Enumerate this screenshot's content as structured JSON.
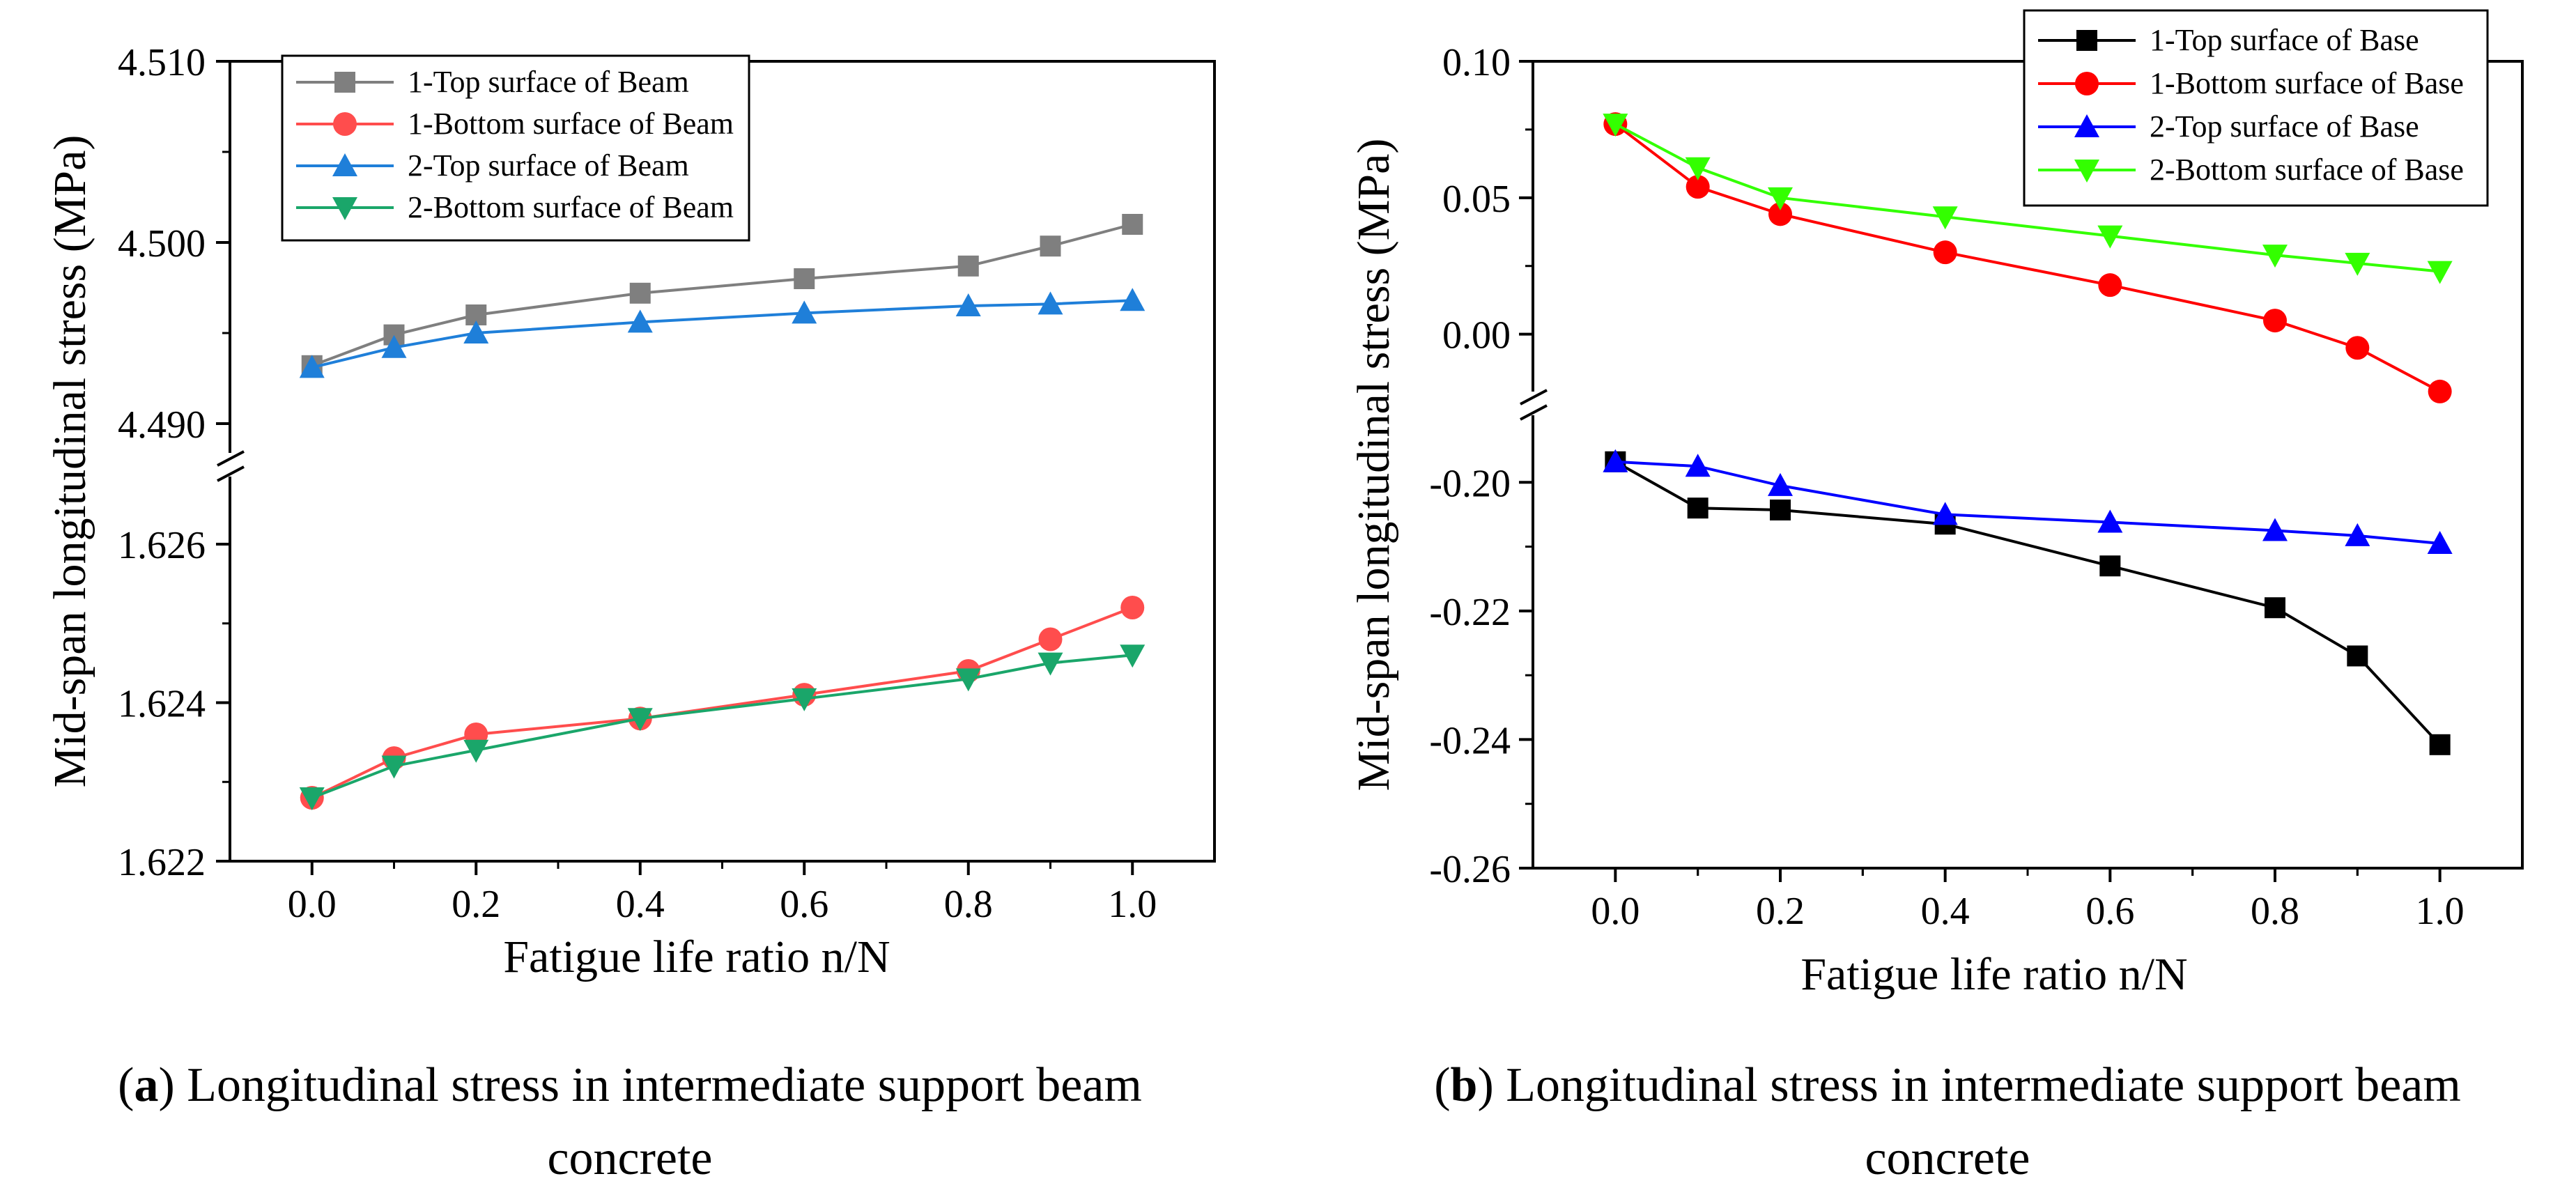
{
  "chart_data": [
    {
      "type": "line",
      "panel": "a",
      "ylabel": "Mid-span longitudinal stress (MPa)",
      "xlabel": "Fatigue life ratio n/N",
      "x_ticks": [
        "0.0",
        "0.2",
        "0.4",
        "0.6",
        "0.8",
        "1.0"
      ],
      "xlim": [
        -0.1,
        1.1
      ],
      "broken_axis": true,
      "upper_range": [
        4.488,
        4.51
      ],
      "upper_ticks": [
        "4.490",
        "4.500",
        "4.510"
      ],
      "lower_range": [
        1.622,
        1.6268
      ],
      "lower_ticks": [
        "1.622",
        "1.624",
        "1.626"
      ],
      "caption_label": "a",
      "caption_text": "Longitudinal stress in intermediate support beam",
      "caption_line2": "concrete",
      "legend_position": "top-left",
      "x": [
        0,
        0.1,
        0.2,
        0.4,
        0.6,
        0.8,
        0.9,
        1.0
      ],
      "series": [
        {
          "name": "1-Top surface of Beam",
          "segment": "upper",
          "marker": "square",
          "color": "#7f7f7f",
          "values": [
            4.4932,
            4.4949,
            4.496,
            4.4972,
            4.498,
            4.4987,
            4.4998,
            4.501
          ]
        },
        {
          "name": "1-Bottom surface of Beam",
          "segment": "lower",
          "marker": "circle",
          "color": "#ff4d4d",
          "values": [
            1.6228,
            1.6233,
            1.6236,
            1.6238,
            1.6241,
            1.6244,
            1.6248,
            1.6252
          ]
        },
        {
          "name": "2-Top surface of Beam",
          "segment": "upper",
          "marker": "triangle-up",
          "color": "#1f7fd9",
          "values": [
            4.4931,
            4.4942,
            4.495,
            4.4956,
            4.4961,
            4.4965,
            4.4966,
            4.4968
          ]
        },
        {
          "name": "2-Bottom surface of Beam",
          "segment": "lower",
          "marker": "triangle-down",
          "color": "#1aa66a",
          "values": [
            1.6228,
            1.6232,
            1.6234,
            1.6238,
            1.62405,
            1.6243,
            1.6245,
            1.6246
          ]
        }
      ]
    },
    {
      "type": "line",
      "panel": "b",
      "ylabel": "Mid-span longitudinal stress (MPa)",
      "xlabel": "Fatigue life ratio n/N",
      "x_ticks": [
        "0.0",
        "0.2",
        "0.4",
        "0.6",
        "0.8",
        "1.0"
      ],
      "xlim": [
        -0.1,
        1.1
      ],
      "broken_axis": true,
      "upper_range": [
        -0.02,
        0.1
      ],
      "upper_ticks": [
        "0.00",
        "0.05",
        "0.10"
      ],
      "lower_range": [
        -0.26,
        -0.19
      ],
      "lower_ticks": [
        "-0.20",
        "-0.22",
        "-0.24",
        "-0.26"
      ],
      "caption_label": "b",
      "caption_text": "Longitudinal stress in intermediate support beam",
      "caption_line2": "concrete",
      "legend_position": "top-right",
      "x": [
        0,
        0.1,
        0.2,
        0.4,
        0.6,
        0.8,
        0.9,
        1.0
      ],
      "series": [
        {
          "name": "1-Top surface of Base",
          "segment": "lower",
          "marker": "square",
          "color": "#000000",
          "values": [
            -0.1968,
            -0.204,
            -0.2043,
            -0.2065,
            -0.213,
            -0.2195,
            -0.227,
            -0.2408
          ]
        },
        {
          "name": "1-Bottom surface of Base",
          "segment": "upper",
          "marker": "circle",
          "color": "#ff0000",
          "values": [
            0.077,
            0.054,
            0.044,
            0.03,
            0.018,
            0.005,
            -0.005,
            -0.021
          ]
        },
        {
          "name": "2-Top surface of Base",
          "segment": "lower",
          "marker": "triangle-up",
          "color": "#0000ff",
          "values": [
            -0.1968,
            -0.1975,
            -0.2005,
            -0.205,
            -0.2062,
            -0.2075,
            -0.2083,
            -0.2095
          ]
        },
        {
          "name": "2-Bottom surface of Base",
          "segment": "upper",
          "marker": "triangle-down",
          "color": "#33ff00",
          "values": [
            0.077,
            0.061,
            0.05,
            0.043,
            0.036,
            0.029,
            0.026,
            0.023
          ]
        }
      ]
    }
  ]
}
